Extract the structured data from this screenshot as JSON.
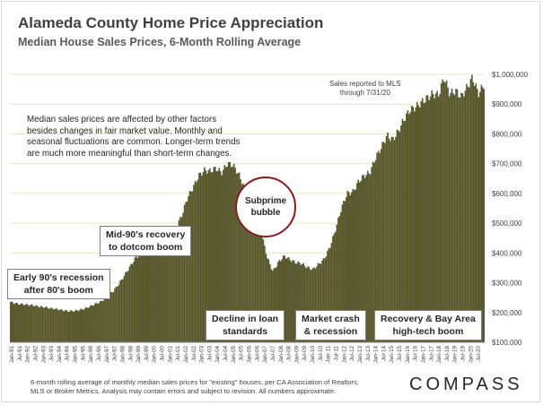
{
  "header": {
    "title": "Alameda County Home Price Appreciation",
    "subtitle": "Median House Sales Prices, 6-Month Rolling Average"
  },
  "annotations": {
    "note": "Median sales prices are affected by other factors besides changes in fair market value. Monthly and seasonal fluctuations are common. Longer-term trends are much more meaningful than short-term changes.",
    "mls_line1": "Sales reported to MLS",
    "mls_line2": "through 7/31/20",
    "bubble_line1": "Subprime",
    "bubble_line2": "bubble",
    "early90s_line1": "Early 90's recession",
    "early90s_line2": "after 80's boom",
    "mid90s_line1": "Mid-90's recovery",
    "mid90s_line2": "to dotcom boom",
    "decline_line1": "Decline in loan",
    "decline_line2": "standards",
    "crash_line1": "Market crash",
    "crash_line2": "& recession",
    "recovery_line1": "Recovery & Bay Area",
    "recovery_line2": "high-tech boom"
  },
  "footer": {
    "line1": "6-month rolling average of monthly median sales prices for \"existing\" houses, per CA Association of Realtors,",
    "line2": "MLS or Broker Metrics.  Analysis may contain errors and subject to revision. All numbers approximate.",
    "brand": "COMPASS"
  },
  "colors": {
    "bar_fill": "#5e5a23",
    "bar_edge": "#2f3b4a",
    "gridline": "#e8e6c0",
    "axis_text": "#404040"
  },
  "chart_data": {
    "type": "bar",
    "title": "Alameda County Home Price Appreciation",
    "subtitle": "Median House Sales Prices, 6-Month Rolling Average",
    "xlabel": "",
    "ylabel": "",
    "ylim": [
      100000,
      1000000
    ],
    "yticks": [
      100000,
      200000,
      300000,
      400000,
      500000,
      600000,
      700000,
      800000,
      900000,
      1000000
    ],
    "ytick_labels": [
      "$100,000",
      "$200,000",
      "$300,000",
      "$400,000",
      "$500,000",
      "$600,000",
      "$700,000",
      "$800,000",
      "$900,000",
      "$1,000,000"
    ],
    "grid": true,
    "x_start": "Jan-91",
    "x_end": "Jul-20",
    "xtick_labels": [
      "Jan-91",
      "Jul-91",
      "Jan-92",
      "Jul-92",
      "Jan-93",
      "Jul-93",
      "Jan-94",
      "Jul-94",
      "Jan-95",
      "Jul-95",
      "Jan-96",
      "Jul-96",
      "Jan-97",
      "Jul-97",
      "Jan-98",
      "Jul-98",
      "Jan-99",
      "Jul-99",
      "Jan-00",
      "Jul-00",
      "Jan-01",
      "Jul-01",
      "Jan-02",
      "Jul-02",
      "Jan-03",
      "Jul-03",
      "Jan-04",
      "Jul-04",
      "Jan-05",
      "Jul-05",
      "Jan-06",
      "Jul-06",
      "Jan-07",
      "Jul-07",
      "Jan-08",
      "Jul-08",
      "Jan-09",
      "Jul-09",
      "Jan-10",
      "Jul-10",
      "Jan-11",
      "Jul-11",
      "Jan-12",
      "Jul-12",
      "Jan-13",
      "Jul-13",
      "Jan-14",
      "Jul-14",
      "Jan-15",
      "Jul-15",
      "Jan-16",
      "Jul-16",
      "Jan-17",
      "Jul-17",
      "Jan-18",
      "Jul-18",
      "Jan-19",
      "Jul-19",
      "Jan-20",
      "Jul-20"
    ],
    "series": [
      {
        "name": "Median House Sales Price (6-mo rolling avg)",
        "values": [
          235000,
          230000,
          228000,
          226000,
          224000,
          220000,
          218000,
          214000,
          212000,
          208000,
          205000,
          205000,
          208000,
          213000,
          221000,
          230000,
          238000,
          255000,
          272000,
          296000,
          326000,
          356000,
          386000,
          398000,
          405000,
          405000,
          413000,
          432000,
          455000,
          485000,
          525000,
          585000,
          620000,
          660000,
          678000,
          675000,
          685000,
          670000,
          700000,
          695000,
          665000,
          620000,
          560000,
          520000,
          465000,
          385000,
          338000,
          370000,
          390000,
          378000,
          368000,
          365000,
          352000,
          345000,
          362000,
          380000,
          420000,
          480000,
          550000,
          600000,
          605000,
          640000,
          660000,
          670000,
          720000,
          755000,
          795000,
          780000,
          810000,
          850000,
          880000,
          890000,
          905000,
          920000,
          935000,
          930000,
          990000,
          935000,
          945000,
          925000,
          955000,
          990000,
          935000,
          965000
        ]
      }
    ]
  }
}
